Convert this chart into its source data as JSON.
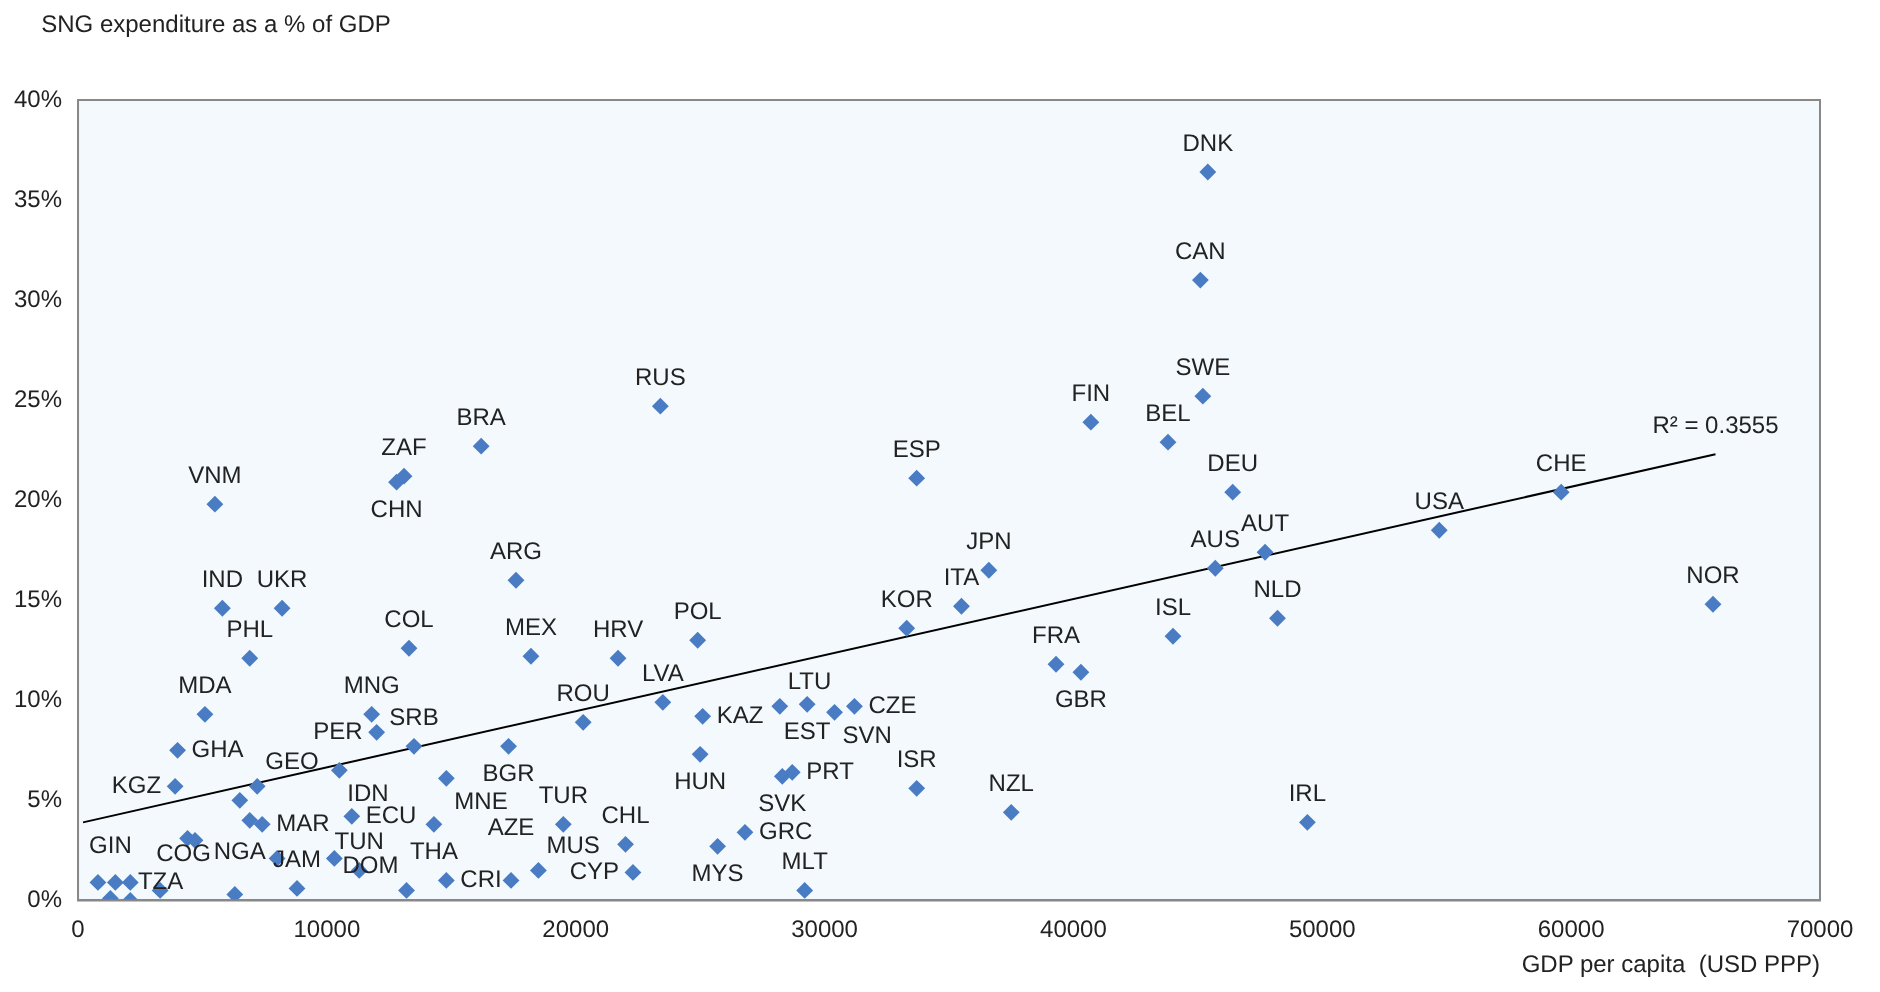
{
  "chart_data": {
    "type": "scatter",
    "ylabel": "SNG expenditure  as a % of GDP",
    "xlabel": "GDP per capita  (USD PPP)",
    "xlim": [
      0,
      70000
    ],
    "xticks": [
      0,
      10000,
      20000,
      30000,
      40000,
      50000,
      60000,
      70000
    ],
    "ylim": [
      0,
      40
    ],
    "yticks": [
      {
        "value": 0,
        "label": "0%"
      },
      {
        "value": 5,
        "label": "5%"
      },
      {
        "value": 10,
        "label": "10%"
      },
      {
        "value": 15,
        "label": "15%"
      },
      {
        "value": 20,
        "label": "20%"
      },
      {
        "value": 25,
        "label": "25%"
      },
      {
        "value": 30,
        "label": "30%"
      },
      {
        "value": 35,
        "label": "35%"
      },
      {
        "value": 40,
        "label": "40%"
      }
    ],
    "grid": false,
    "legend": false,
    "marker": "diamond",
    "series": [
      {
        "color": "#4a7cc4",
        "x": [
          45400,
          45100,
          45200,
          43800,
          40700,
          46400,
          47700,
          45700,
          48200,
          44000,
          54700,
          59600,
          65700,
          49400,
          33700,
          23400,
          36600,
          35500,
          33300,
          39300,
          40300,
          33700,
          37500,
          29200,
          24900,
          21700,
          23500,
          25100,
          25000,
          28200,
          29300,
          30400,
          31200,
          28300,
          28700,
          26800,
          25700,
          22000,
          22300,
          20300,
          17300,
          18200,
          17600,
          16200,
          13100,
          12800,
          13300,
          5500,
          5800,
          8200,
          6900,
          5100,
          4000,
          3900,
          6500,
          7200,
          7400,
          11800,
          12000,
          13500,
          10500,
          14800,
          14300,
          19500,
          11000,
          14800,
          17400,
          18500,
          13200,
          11300,
          8800,
          6300,
          1300,
          800,
          1500,
          2100,
          2100,
          3300,
          4400,
          4700,
          8000,
          10300,
          6900
        ],
        "values": [
          36.4,
          31.0,
          25.2,
          22.9,
          23.9,
          20.4,
          17.4,
          16.6,
          14.1,
          13.2,
          18.5,
          20.4,
          14.8,
          3.9,
          21.1,
          24.7,
          16.5,
          14.7,
          13.6,
          11.8,
          11.4,
          5.6,
          4.4,
          0.5,
          13.0,
          12.1,
          9.9,
          9.2,
          7.3,
          9.7,
          9.8,
          9.4,
          9.7,
          6.2,
          6.4,
          3.4,
          2.7,
          2.8,
          1.4,
          8.9,
          7.7,
          12.2,
          16.0,
          22.7,
          21.2,
          20.9,
          12.6,
          19.8,
          14.6,
          14.6,
          12.1,
          9.3,
          7.5,
          5.7,
          5.0,
          5.7,
          3.8,
          9.3,
          8.4,
          7.7,
          6.5,
          6.1,
          3.8,
          3.8,
          4.2,
          1.0,
          1.0,
          1.5,
          0.5,
          1.5,
          0.6,
          0.3,
          0.1,
          0.9,
          0.9,
          0.9,
          0.0,
          0.5,
          3.1,
          3.0,
          2.1,
          2.1,
          4.0
        ]
      },
      {
        "type": "line",
        "color": "#000000",
        "marker": "none",
        "x": [
          200,
          65800
        ],
        "values": [
          3.9,
          22.3
        ]
      }
    ],
    "annotations": [
      {
        "text": "DNK",
        "x": 45400,
        "y": 36.4
      },
      {
        "text": "CAN",
        "x": 45100,
        "y": 31.0
      },
      {
        "text": "SWE",
        "x": 45200,
        "y": 25.2
      },
      {
        "text": "BEL",
        "x": 43800,
        "y": 22.9
      },
      {
        "text": "FIN",
        "x": 40700,
        "y": 23.9
      },
      {
        "text": "DEU",
        "x": 46400,
        "y": 20.4
      },
      {
        "text": "AUT",
        "x": 47700,
        "y": 17.4
      },
      {
        "text": "AUS",
        "x": 45700,
        "y": 16.6
      },
      {
        "text": "NLD",
        "x": 48200,
        "y": 14.1
      },
      {
        "text": "ISL",
        "x": 44000,
        "y": 13.2
      },
      {
        "text": "USA",
        "x": 54700,
        "y": 18.5
      },
      {
        "text": "CHE",
        "x": 59600,
        "y": 20.4
      },
      {
        "text": "NOR",
        "x": 65700,
        "y": 14.8
      },
      {
        "text": "IRL",
        "x": 49400,
        "y": 3.9
      },
      {
        "text": "ESP",
        "x": 33700,
        "y": 21.1
      },
      {
        "text": "RUS",
        "x": 23400,
        "y": 24.7
      },
      {
        "text": "JPN",
        "x": 36600,
        "y": 16.5
      },
      {
        "text": "ITA",
        "x": 35500,
        "y": 14.7
      },
      {
        "text": "KOR",
        "x": 33300,
        "y": 13.6
      },
      {
        "text": "FRA",
        "x": 39300,
        "y": 11.8
      },
      {
        "text": "GBR",
        "x": 40300,
        "y": 11.4
      },
      {
        "text": "ISR",
        "x": 33700,
        "y": 5.6
      },
      {
        "text": "NZL",
        "x": 37500,
        "y": 4.4
      },
      {
        "text": "MLT",
        "x": 29200,
        "y": 0.5
      },
      {
        "text": "POL",
        "x": 24900,
        "y": 13.0
      },
      {
        "text": "HRV",
        "x": 21700,
        "y": 12.1
      },
      {
        "text": "LVA",
        "x": 23500,
        "y": 9.9
      },
      {
        "text": "KAZ",
        "x": 25100,
        "y": 9.2
      },
      {
        "text": "HUN",
        "x": 25000,
        "y": 7.3
      },
      {
        "text": "LTU",
        "x": 28200,
        "y": 9.7
      },
      {
        "text": "EST",
        "x": 29300,
        "y": 9.8
      },
      {
        "text": "SVN",
        "x": 30400,
        "y": 9.4
      },
      {
        "text": "CZE",
        "x": 31200,
        "y": 9.7
      },
      {
        "text": "SVK",
        "x": 28300,
        "y": 6.2
      },
      {
        "text": "PRT",
        "x": 28700,
        "y": 6.4
      },
      {
        "text": "GRC",
        "x": 26800,
        "y": 3.4
      },
      {
        "text": "MYS",
        "x": 25700,
        "y": 2.7
      },
      {
        "text": "CHL",
        "x": 22000,
        "y": 2.8
      },
      {
        "text": "CYP",
        "x": 22300,
        "y": 1.4
      },
      {
        "text": "ROU",
        "x": 20300,
        "y": 8.9
      },
      {
        "text": "BGR",
        "x": 17300,
        "y": 7.7
      },
      {
        "text": "MEX",
        "x": 18200,
        "y": 12.2
      },
      {
        "text": "ARG",
        "x": 17600,
        "y": 16.0
      },
      {
        "text": "BRA",
        "x": 16200,
        "y": 22.7
      },
      {
        "text": "ZAF",
        "x": 13100,
        "y": 21.2
      },
      {
        "text": "CHN",
        "x": 12800,
        "y": 20.9
      },
      {
        "text": "COL",
        "x": 13300,
        "y": 12.6
      },
      {
        "text": "VNM",
        "x": 5500,
        "y": 19.8
      },
      {
        "text": "IND",
        "x": 5800,
        "y": 14.6
      },
      {
        "text": "UKR",
        "x": 8200,
        "y": 14.6
      },
      {
        "text": "PHL",
        "x": 6900,
        "y": 12.1
      },
      {
        "text": "MDA",
        "x": 5100,
        "y": 9.3
      },
      {
        "text": "GHA",
        "x": 4000,
        "y": 7.5
      },
      {
        "text": "KGZ",
        "x": 3900,
        "y": 5.7
      },
      {
        "text": "NGA",
        "x": 6500,
        "y": 5.0
      },
      {
        "text": "GEO",
        "x": 7200,
        "y": 5.7
      },
      {
        "text": "MAR",
        "x": 7400,
        "y": 3.8
      },
      {
        "text": "MNG",
        "x": 11800,
        "y": 9.3
      },
      {
        "text": "PER",
        "x": 12000,
        "y": 8.4
      },
      {
        "text": "SRB",
        "x": 13500,
        "y": 7.7
      },
      {
        "text": "IDN",
        "x": 10500,
        "y": 6.5
      },
      {
        "text": "MNE",
        "x": 14800,
        "y": 6.1
      },
      {
        "text": "THA",
        "x": 14300,
        "y": 3.8
      },
      {
        "text": "TUR",
        "x": 19500,
        "y": 3.8
      },
      {
        "text": "ECU",
        "x": 11000,
        "y": 4.2
      },
      {
        "text": "CRI",
        "x": 14800,
        "y": 1.0
      },
      {
        "text": "AZE",
        "x": 17400,
        "y": 1.0
      },
      {
        "text": "MUS",
        "x": 18500,
        "y": 1.5
      },
      {
        "text": "DOM",
        "x": 13200,
        "y": 0.5
      },
      {
        "text": "TUN",
        "x": 11300,
        "y": 1.5
      },
      {
        "text": "JAM",
        "x": 8800,
        "y": 0.6
      },
      {
        "text": "COG",
        "x": 6300,
        "y": 0.3
      },
      {
        "text": "GIN",
        "x": 1300,
        "y": 0.1
      },
      {
        "text": "TZA",
        "x": 800,
        "y": 0.9
      },
      {
        "text": "R² = 0.3555",
        "x": 65800,
        "y": 22.3
      }
    ]
  }
}
